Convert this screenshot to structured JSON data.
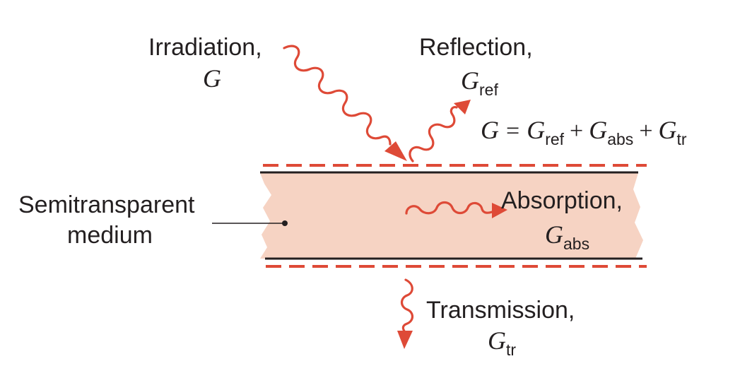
{
  "colors": {
    "ray": "#de4a37",
    "medium_fill": "#f6d3c3",
    "ink": "#231f20"
  },
  "labels": {
    "irradiation": {
      "word": "Irradiation,",
      "symbol": "G"
    },
    "reflection": {
      "word": "Reflection,",
      "symbol": "G",
      "subscript": "ref"
    },
    "absorption": {
      "word": "Absorption,",
      "symbol": "G",
      "subscript": "abs"
    },
    "transmission": {
      "word": "Transmission,",
      "symbol": "G",
      "subscript": "tr"
    },
    "medium": {
      "line1": "Semitransparent",
      "line2": "medium"
    }
  },
  "equation": {
    "lhs": "G",
    "equals": "=",
    "plus": "+",
    "terms": [
      {
        "symbol": "G",
        "subscript": "ref"
      },
      {
        "symbol": "G",
        "subscript": "abs"
      },
      {
        "symbol": "G",
        "subscript": "tr"
      }
    ]
  },
  "icons": {
    "irradiation_ray": "wavy-arrow-icon",
    "reflection_ray": "wavy-arrow-icon",
    "absorption_ray": "wavy-arrow-icon",
    "transmission_ray": "wavy-arrow-icon"
  }
}
